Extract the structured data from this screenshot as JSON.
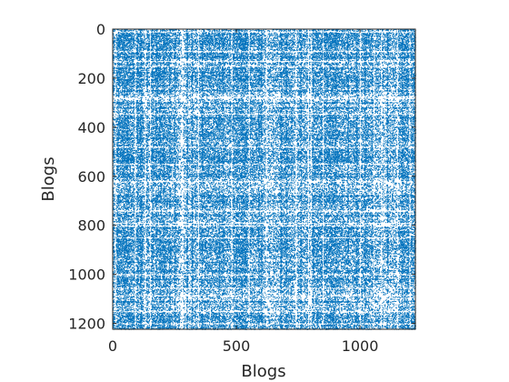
{
  "chart_data": {
    "type": "scatter",
    "subtype": "sparsity-pattern",
    "title": "",
    "xlabel": "Blogs",
    "ylabel": "Blogs",
    "xlim": [
      0,
      1224
    ],
    "ylim": [
      0,
      1224
    ],
    "y_reversed": true,
    "grid": false,
    "x_ticks": [
      0,
      500,
      1000
    ],
    "y_ticks": [
      0,
      200,
      400,
      600,
      800,
      1000,
      1200
    ],
    "marker_color": "#0072BD",
    "axis_color": "#262626",
    "matrix": {
      "rows": 1224,
      "cols": 1224,
      "symmetric": true,
      "approx_density": 0.06,
      "dense_rows_cols": [
        20,
        45,
        60,
        100,
        110,
        115,
        160,
        175,
        190,
        205,
        230,
        250,
        300,
        320,
        360,
        430,
        445,
        500,
        520,
        590,
        600,
        680,
        700,
        760,
        810,
        900,
        950,
        985,
        1020,
        1110,
        1170
      ],
      "sparse_rows_cols": [
        10,
        90,
        130,
        150,
        280,
        345,
        480,
        550,
        620,
        740,
        790,
        800,
        850,
        1000,
        1055,
        1085,
        1150,
        1200
      ]
    }
  }
}
